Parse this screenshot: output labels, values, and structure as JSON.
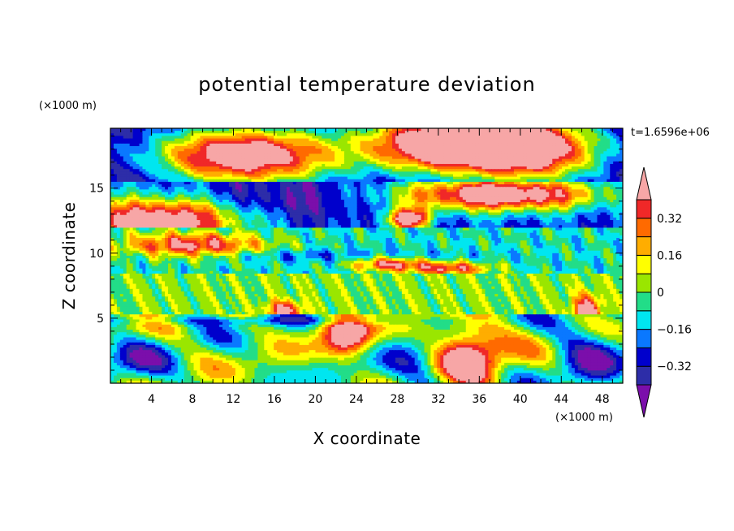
{
  "chart_data": {
    "type": "heatmap",
    "title": "potential temperature deviation",
    "xlabel": "X coordinate",
    "ylabel": "Z coordinate",
    "x_unit": "(×1000 m)",
    "y_unit": "(×1000 m)",
    "time_label": "t=1.6596e+06",
    "xlim": [
      0,
      50
    ],
    "ylim": [
      0,
      19.6
    ],
    "x_ticks": [
      "4",
      "8",
      "12",
      "16",
      "20",
      "24",
      "28",
      "32",
      "36",
      "40",
      "44",
      "48"
    ],
    "x_tick_values": [
      4,
      8,
      12,
      16,
      20,
      24,
      28,
      32,
      36,
      40,
      44,
      48
    ],
    "y_ticks": [
      "5",
      "10",
      "15"
    ],
    "y_tick_values": [
      5,
      10,
      15
    ],
    "colorbar": {
      "levels": [
        -0.4,
        -0.32,
        -0.24,
        -0.16,
        -0.08,
        0,
        0.08,
        0.16,
        0.24,
        0.32,
        0.4
      ],
      "labels": [
        "0.32",
        "0.16",
        "0",
        "−0.16",
        "−0.32"
      ],
      "label_values": [
        0.32,
        0.16,
        0,
        -0.16,
        -0.32
      ],
      "colors": [
        "#7b0eab",
        "#2d2da8",
        "#0000cc",
        "#0a78ff",
        "#00e6f0",
        "#22dd88",
        "#9ae600",
        "#ffff00",
        "#ffad00",
        "#ff6a00",
        "#f02828",
        "#f7a6a6"
      ]
    },
    "grid": false
  }
}
